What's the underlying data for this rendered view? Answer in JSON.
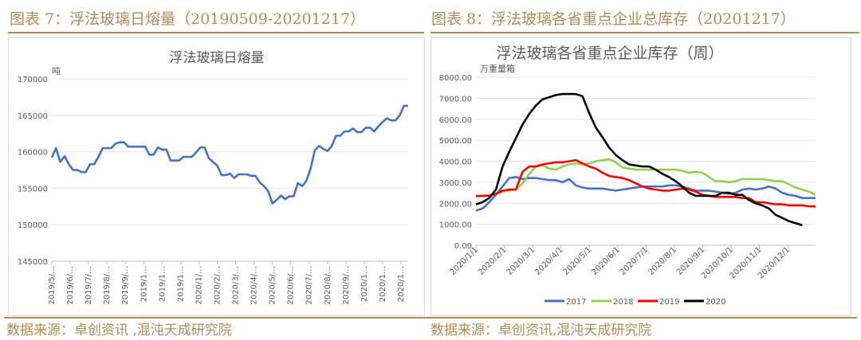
{
  "left_header": "图表 7：浮法玻璃日熔量（20190509-20201217）",
  "right_header": "图表 8：浮法玻璃各省重点企业总库存（20201217）",
  "left_source": "数据来源：卓创资讯 ,混沌天成研究院",
  "right_source": "数据来源：卓创资讯,混沌天成研究院",
  "colors": {
    "header": "#b08d57",
    "s2017": "#4472C4",
    "s2018": "#92D050",
    "s2019": "#FF0000",
    "s2020": "#000000",
    "melt": "#4472C4"
  },
  "chart_data": [
    {
      "type": "line",
      "title": "浮法玻璃日熔量",
      "ylabel": "吨",
      "ylim": [
        145000,
        170000
      ],
      "yticks": [
        "145000",
        "150000",
        "155000",
        "160000",
        "165000",
        "170000"
      ],
      "xtick_labels": [
        "2019/5/…",
        "2019/6/…",
        "2019/7/…",
        "2019/8/…",
        "2019/9/…",
        "2019/1…",
        "2019/1…",
        "2019/1…",
        "2020/1/…",
        "2020/2/…",
        "2020/3/…",
        "2020/4/…",
        "2020/5/…",
        "2020/6/…",
        "2020/7/…",
        "2020/8/…",
        "2020/9/…",
        "2020/1…",
        "2020/1…",
        "2020/1…"
      ],
      "grid": true,
      "series": [
        {
          "values": [
            159200,
            160500,
            158600,
            159400,
            158300,
            157500,
            157500,
            157200,
            157200,
            158300,
            158300,
            159300,
            160500,
            160500,
            160500,
            161100,
            161300,
            161300,
            160700,
            160700,
            160700,
            160700,
            160700,
            159600,
            159600,
            160600,
            160300,
            160300,
            158800,
            158800,
            158800,
            159300,
            159300,
            159300,
            159900,
            160600,
            160600,
            159100,
            158600,
            158100,
            156800,
            156800,
            157000,
            156400,
            156900,
            156900,
            156900,
            156700,
            156700,
            155800,
            155300,
            154600,
            152900,
            153400,
            154000,
            153500,
            153900,
            153900,
            155700,
            155300,
            156000,
            157700,
            160200,
            160800,
            160400,
            160100,
            160800,
            162200,
            162200,
            162800,
            162800,
            163200,
            162700,
            162700,
            163300,
            163300,
            162800,
            163500,
            164100,
            164600,
            164300,
            164300,
            165000,
            166300,
            166300
          ]
        }
      ]
    },
    {
      "type": "line",
      "title": "浮法玻璃各省重点企业库存（周）",
      "ylabel": "万重量箱",
      "ylim": [
        0,
        8000
      ],
      "yticks": [
        "0.00",
        "1000.00",
        "2000.00",
        "3000.00",
        "4000.00",
        "5000.00",
        "6000.00",
        "7000.00",
        "8000.00"
      ],
      "xtick_labels": [
        "2020/1/1",
        "2020/2/1",
        "2020/3/1",
        "2020/4/1",
        "2020/5/1",
        "2020/6/1",
        "2020/7/1",
        "2020/8/1",
        "2020/9/1",
        "2020/10/1",
        "2020/11/1",
        "2020/12/1"
      ],
      "grid": true,
      "legend": "bottom",
      "series": [
        {
          "name": "2017",
          "values": [
            1650,
            1750,
            2050,
            2400,
            2800,
            3200,
            3250,
            3150,
            3200,
            3200,
            3150,
            3100,
            3100,
            3000,
            3150,
            2850,
            2750,
            2700,
            2700,
            2700,
            2650,
            2600,
            2650,
            2700,
            2750,
            2800,
            2800,
            2800,
            2800,
            2850,
            2850,
            2800,
            2700,
            2600,
            2600,
            2600,
            2550,
            2500,
            2450,
            2500,
            2650,
            2700,
            2650,
            2700,
            2800,
            2700,
            2500,
            2400,
            2350,
            2250,
            2250,
            2250
          ]
        },
        {
          "name": "2018",
          "values": [
            2300,
            2350,
            2400,
            2450,
            2550,
            2600,
            2650,
            2950,
            3400,
            3750,
            3800,
            3650,
            3600,
            3750,
            3850,
            3900,
            3850,
            3900,
            4000,
            4050,
            4100,
            3950,
            3700,
            3650,
            3600,
            3600,
            3600,
            3600,
            3600,
            3600,
            3600,
            3550,
            3450,
            3500,
            3450,
            3250,
            3050,
            3050,
            3000,
            3050,
            3150,
            3150,
            3150,
            3150,
            3100,
            3050,
            3050,
            2900,
            2750,
            2650,
            2550,
            2400
          ]
        },
        {
          "name": "2019",
          "values": [
            2350,
            2350,
            2350,
            2450,
            2600,
            2650,
            2650,
            3500,
            3750,
            3750,
            3850,
            3900,
            3950,
            3950,
            4000,
            4050,
            3900,
            3750,
            3650,
            3450,
            3300,
            3250,
            3200,
            3100,
            2950,
            2800,
            2700,
            2650,
            2600,
            2600,
            2650,
            2700,
            2650,
            2550,
            2400,
            2350,
            2300,
            2300,
            2300,
            2300,
            2250,
            2250,
            2050,
            2050,
            2000,
            1950,
            1950,
            1900,
            1900,
            1900,
            1850,
            1850
          ]
        },
        {
          "name": "2020",
          "values": [
            1950,
            2050,
            2250,
            2650,
            3750,
            4450,
            5100,
            5750,
            6250,
            6650,
            6950,
            7050,
            7150,
            7200,
            7200,
            7200,
            7100,
            6300,
            5600,
            5150,
            4650,
            4300,
            4050,
            3850,
            3800,
            3750,
            3750,
            3600,
            3400,
            3250,
            3050,
            2800,
            2500,
            2350,
            2350,
            2350,
            2350,
            2500,
            2500,
            2400,
            2400,
            2150,
            2000,
            1900,
            1750,
            1450,
            1300,
            1150,
            1050,
            950
          ]
        }
      ]
    }
  ]
}
